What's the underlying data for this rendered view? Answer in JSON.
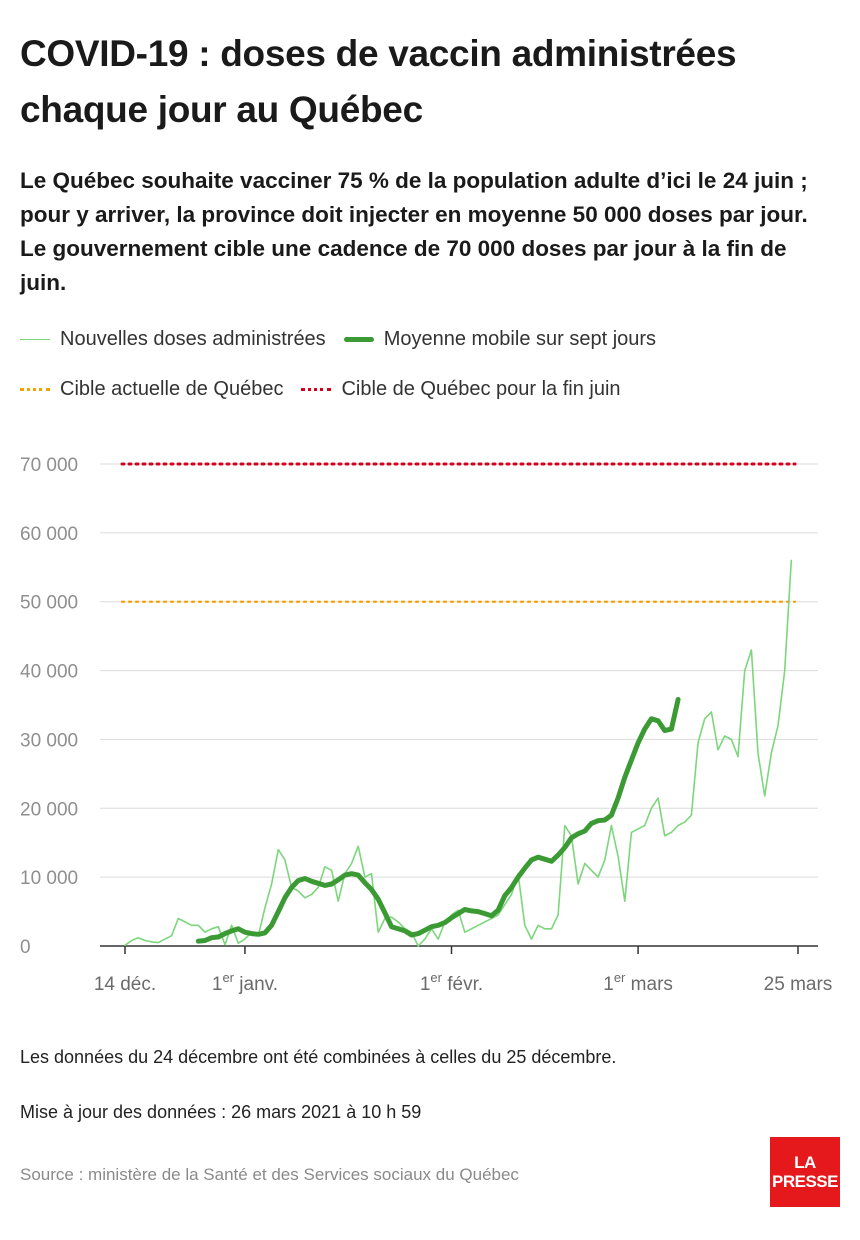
{
  "header": {
    "title": "COVID-19 : doses de vaccin administrées chaque jour au Québec",
    "subtitle": "Le Québec souhaite vacciner 75 % de la population adulte d’ici le 24 juin ; pour y arriver, la province doit injecter en moyenne 50 000 doses par jour. Le gouvernement cible une cadence de 70 000 doses par jour à la fin de juin."
  },
  "legend": {
    "daily": "Nouvelles doses administrées",
    "avg": "Moyenne mobile sur sept jours",
    "target_current": "Cible actuelle de Québec",
    "target_june": "Cible de Québec pour la fin juin"
  },
  "colors": {
    "daily": "#7cd67c",
    "avg": "#3c9a34",
    "target_current": "#f5a100",
    "target_june": "#d7001c",
    "grid": "#dcdcdc"
  },
  "chart_data": {
    "type": "line",
    "x_unit": "date",
    "x_start": "2020-12-14",
    "x_end": "2021-03-25",
    "ylim": [
      0,
      70000
    ],
    "yticks": [
      0,
      10000,
      20000,
      30000,
      40000,
      50000,
      60000,
      70000
    ],
    "ytick_labels": [
      "0",
      "10 000",
      "20 000",
      "30 000",
      "40 000",
      "50 000",
      "60 000",
      "70 000"
    ],
    "xticks": [
      {
        "date": "2020-12-14",
        "label": "14 déc.",
        "sup": ""
      },
      {
        "date": "2021-01-01",
        "label": "1",
        "sup": "er",
        "suffix": " janv."
      },
      {
        "date": "2021-02-01",
        "label": "1",
        "sup": "er",
        "suffix": " févr."
      },
      {
        "date": "2021-03-01",
        "label": "1",
        "sup": "er",
        "suffix": " mars"
      },
      {
        "date": "2021-03-25",
        "label": "25 mars",
        "sup": ""
      }
    ],
    "series": [
      {
        "name": "Nouvelles doses administrées",
        "start": "2020-12-14",
        "values": [
          100,
          800,
          1200,
          800,
          600,
          500,
          1000,
          1500,
          4000,
          3500,
          3000,
          3000,
          2000,
          2500,
          2800,
          200,
          3000,
          400,
          1000,
          2000,
          1500,
          5500,
          9000,
          14000,
          12500,
          8500,
          8000,
          7000,
          7500,
          8500,
          11500,
          11000,
          6500,
          10500,
          12000,
          14500,
          10000,
          10500,
          2000,
          4000,
          4200,
          3500,
          2500,
          2000,
          0,
          1000,
          2500,
          1000,
          3500,
          4500,
          5200,
          2000,
          2500,
          3000,
          3500,
          4000,
          4500,
          6000,
          7500,
          10500,
          3000,
          1000,
          3000,
          2500,
          2500,
          4500,
          17500,
          16000,
          9000,
          12000,
          11000,
          10000,
          12500,
          17500,
          13000,
          6500,
          16500,
          17000,
          17500,
          20000,
          21500,
          16000,
          16500,
          17500,
          18000,
          19000,
          29500,
          33000,
          34000,
          28500,
          30500,
          30000,
          27500,
          40000,
          43000,
          28000,
          21800,
          28000,
          32000,
          40000,
          56000
        ]
      },
      {
        "name": "Moyenne mobile sur sept jours",
        "start": "2020-12-25",
        "values": [
          700,
          800,
          1200,
          1300,
          1800,
          2200,
          2500,
          2000,
          1800,
          1700,
          1900,
          3000,
          5000,
          7000,
          8500,
          9500,
          9800,
          9400,
          9100,
          8800,
          9000,
          9600,
          10300,
          10500,
          10300,
          9200,
          8200,
          6800,
          4800,
          2800,
          2500,
          2200,
          1600,
          1800,
          2300,
          2800,
          3000,
          3400,
          4100,
          4700,
          5300,
          5100,
          5000,
          4700,
          4400,
          5200,
          7300,
          8500,
          10000,
          11300,
          12500,
          12900,
          12600,
          12300,
          13200,
          14300,
          15700,
          16300,
          16700,
          17800,
          18200,
          18300,
          19000,
          21500,
          24500,
          27000,
          29500,
          31500,
          33000,
          32700,
          31300,
          31500,
          35800
        ]
      }
    ],
    "reference_lines": [
      {
        "name": "Cible actuelle de Québec",
        "y": 50000
      },
      {
        "name": "Cible de Québec pour la fin juin",
        "y": 70000
      }
    ]
  },
  "notes": {
    "combined": "Les données du 24 décembre ont été combinées à celles du 25 décembre.",
    "updated": "Mise à jour des données : 26 mars 2021 à 10 h 59",
    "source": "Source : ministère de la Santé et des Services sociaux du Québec"
  },
  "logo": {
    "line1": "LA",
    "line2": "PRESSE"
  }
}
